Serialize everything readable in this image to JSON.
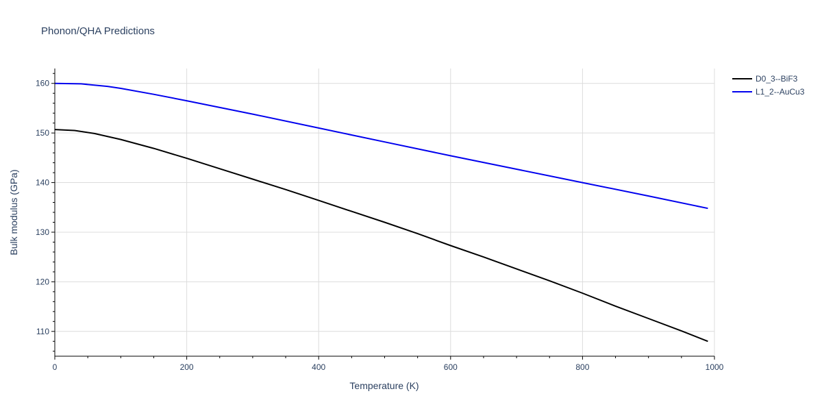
{
  "chart_data": {
    "type": "line",
    "title": "Phonon/QHA Predictions",
    "xlabel": "Temperature (K)",
    "ylabel": "Bulk modulus (GPa)",
    "xlim": [
      0,
      1000
    ],
    "ylim": [
      105,
      163
    ],
    "x_ticks": [
      0,
      200,
      400,
      600,
      800,
      1000
    ],
    "y_ticks": [
      110,
      120,
      130,
      140,
      150,
      160
    ],
    "grid": true,
    "legend_position": "top-right",
    "series": [
      {
        "name": "D0_3--BiF3",
        "color": "#000000",
        "x": [
          0,
          30,
          60,
          100,
          150,
          200,
          250,
          300,
          350,
          400,
          450,
          500,
          550,
          600,
          650,
          700,
          750,
          800,
          850,
          900,
          950,
          990
        ],
        "y": [
          150.7,
          150.5,
          149.9,
          148.7,
          146.9,
          144.9,
          142.8,
          140.7,
          138.6,
          136.4,
          134.2,
          132.0,
          129.7,
          127.3,
          125.0,
          122.6,
          120.2,
          117.7,
          115.1,
          112.6,
          110.1,
          108.0
        ]
      },
      {
        "name": "L1_2--AuCu3",
        "color": "#0000ee",
        "x": [
          0,
          40,
          80,
          100,
          150,
          200,
          300,
          400,
          500,
          600,
          700,
          800,
          900,
          990
        ],
        "y": [
          160.0,
          159.9,
          159.4,
          159.0,
          157.8,
          156.5,
          153.8,
          151.0,
          148.2,
          145.4,
          142.7,
          140.0,
          137.3,
          134.8
        ]
      }
    ]
  }
}
